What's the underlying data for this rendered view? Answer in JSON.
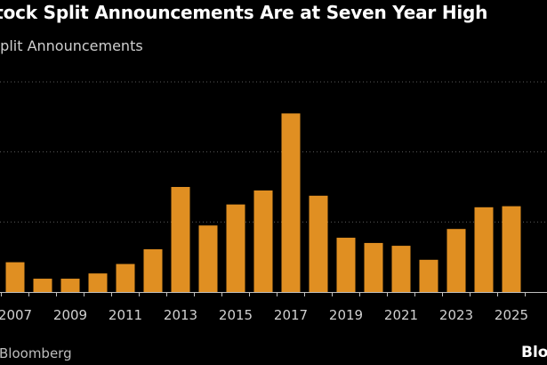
{
  "header": {
    "title": "Stock Split Announcements Are at Seven Year High",
    "subtitle": "Split Announcements"
  },
  "footer": {
    "source": "Bloomberg",
    "logo": "Bloo"
  },
  "colors": {
    "background": "#000000",
    "bar": "#E08F22",
    "gridline": "#5a5a5a",
    "axis": "#bfbfbf"
  },
  "chart_data": {
    "type": "bar",
    "title": "Stock Split Announcements Are at Seven Year High",
    "ylabel": "Split Announcements",
    "xlabel": "",
    "categories": [
      "2007",
      "2008",
      "2009",
      "2010",
      "2011",
      "2012",
      "2013",
      "2014",
      "2015",
      "2016",
      "2017",
      "2018",
      "2019",
      "2020",
      "2021",
      "2022",
      "2023",
      "2024",
      "2025"
    ],
    "values": [
      8.5,
      3.8,
      3.8,
      5.3,
      8.0,
      12.2,
      30.0,
      19.0,
      25.0,
      29.0,
      51.0,
      27.5,
      15.5,
      14.0,
      13.2,
      9.2,
      18.0,
      24.2,
      24.5
    ],
    "x_tick_labels": [
      "2007",
      "2009",
      "2011",
      "2013",
      "2015",
      "2017",
      "2019",
      "2021",
      "2023",
      "2025"
    ],
    "gridlines_at": [
      20,
      40,
      60
    ],
    "ylim": [
      0,
      60
    ],
    "grid": true,
    "legend": "none"
  }
}
